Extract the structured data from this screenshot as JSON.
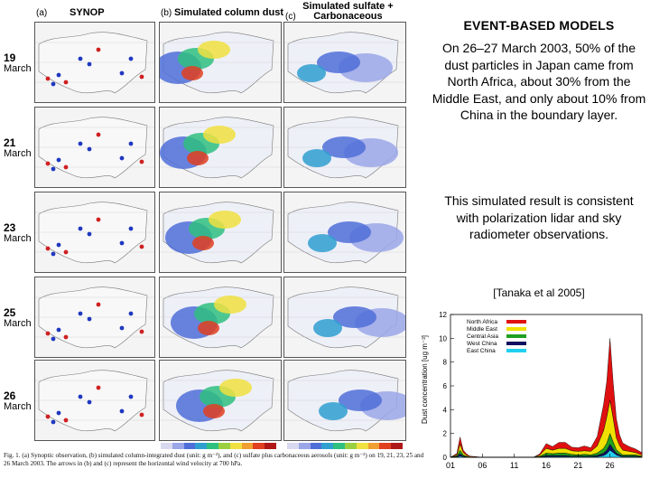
{
  "figure": {
    "column_a_label": "(a)",
    "column_a_title": "SYNOP",
    "column_b_label": "(b)",
    "column_b_title": "Simulated column dust",
    "column_c_label": "(c)",
    "column_c_title": "Simulated sulfate + Carbonaceous",
    "rows": [
      {
        "day": "19",
        "month": "March"
      },
      {
        "day": "21",
        "month": "March"
      },
      {
        "day": "23",
        "month": "March"
      },
      {
        "day": "25",
        "month": "March"
      },
      {
        "day": "26",
        "month": "March"
      }
    ],
    "caption": "Fig. 1. (a) Synoptic observation, (b) simulated column-integrated dust (unit: g m⁻²), and (c) sulfate plus carbonaceous aerosols (unit: g m⁻²) on 19, 21, 23, 25 and 26 March 2003. The arrows in (b) and (c) represent the horizontal wind velocity at 700 hPa.",
    "colors": {
      "dust_scale": [
        "#d8d8f0",
        "#9aa6e8",
        "#4f6fd8",
        "#2f9fd0",
        "#2fc080",
        "#9ad040",
        "#f0e040",
        "#f0a030",
        "#e04020",
        "#b01818"
      ],
      "synop_dust": "#2038c0",
      "synop_haze": "#d02020"
    }
  },
  "text_panel": {
    "title": "EVENT-BASED MODELS",
    "paragraph1": "On 26–27 March 2003, 50% of the dust particles in Japan came from North Africa, about 30% from the Middle East, and only about 10% from China in the boundary layer.",
    "paragraph2": "This simulated result is consistent with polarization lidar and sky radiometer observations.",
    "reference": "[Tanaka et al 2005]"
  },
  "chart_data": {
    "type": "area",
    "title": "",
    "xlabel": "",
    "ylabel": "Dust concentration [ug m⁻³]",
    "xlim": [
      1,
      31
    ],
    "ylim": [
      0,
      12
    ],
    "x_ticks": [
      "01",
      "06",
      "11",
      "16",
      "21",
      "26"
    ],
    "y_ticks": [
      0,
      2,
      4,
      6,
      8,
      10,
      12
    ],
    "legend_position": "top-left",
    "x": [
      1,
      2,
      2.5,
      3,
      3.5,
      4,
      6,
      8,
      10,
      12,
      14,
      15,
      16,
      17,
      18,
      19,
      20,
      21,
      22,
      23,
      24,
      25,
      25.5,
      26,
      26.5,
      27,
      27.5,
      28,
      29,
      30,
      31
    ],
    "series": [
      {
        "name": "North Africa",
        "color": "#e01010",
        "values": [
          0,
          0.1,
          0.6,
          0.2,
          0.1,
          0.05,
          0,
          0,
          0,
          0,
          0,
          0.1,
          0.4,
          0.3,
          0.5,
          0.5,
          0.3,
          0.3,
          0.4,
          0.3,
          0.8,
          2.2,
          3.0,
          5.2,
          3.0,
          1.6,
          0.9,
          0.6,
          0.4,
          0.3,
          0.2
        ]
      },
      {
        "name": "Middle East",
        "color": "#f0e000",
        "values": [
          0,
          0.1,
          0.5,
          0.2,
          0.1,
          0.05,
          0,
          0,
          0,
          0,
          0,
          0.1,
          0.4,
          0.3,
          0.4,
          0.4,
          0.3,
          0.3,
          0.3,
          0.3,
          0.6,
          1.5,
          2.2,
          2.8,
          2.0,
          1.0,
          0.6,
          0.4,
          0.3,
          0.2,
          0.1
        ]
      },
      {
        "name": "Central Asia",
        "color": "#20a020",
        "values": [
          0,
          0.05,
          0.3,
          0.1,
          0.05,
          0,
          0,
          0,
          0,
          0,
          0,
          0.05,
          0.2,
          0.15,
          0.2,
          0.2,
          0.15,
          0.1,
          0.15,
          0.1,
          0.2,
          0.4,
          0.6,
          0.9,
          0.6,
          0.3,
          0.2,
          0.1,
          0.1,
          0.1,
          0.05
        ]
      },
      {
        "name": "West China",
        "color": "#101060",
        "values": [
          0,
          0.05,
          0.2,
          0.05,
          0.02,
          0,
          0,
          0,
          0,
          0,
          0,
          0.02,
          0.1,
          0.1,
          0.1,
          0.1,
          0.05,
          0.05,
          0.05,
          0.05,
          0.1,
          0.2,
          0.3,
          0.5,
          0.3,
          0.15,
          0.1,
          0.05,
          0.05,
          0.05,
          0.02
        ]
      },
      {
        "name": "East China",
        "color": "#20d0f0",
        "values": [
          0,
          0.02,
          0.1,
          0.05,
          0.02,
          0,
          0,
          0,
          0,
          0,
          0,
          0.02,
          0.05,
          0.05,
          0.05,
          0.05,
          0.05,
          0.05,
          0.05,
          0.05,
          0.05,
          0.15,
          0.3,
          0.6,
          0.4,
          0.2,
          0.1,
          0.05,
          0.05,
          0.05,
          0.02
        ]
      }
    ]
  }
}
